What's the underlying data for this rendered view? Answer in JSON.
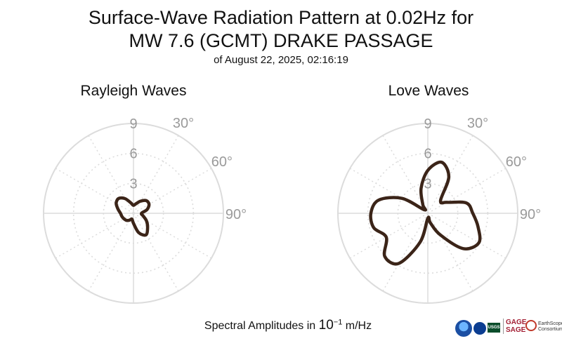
{
  "title": {
    "line1": "Surface-Wave Radiation Pattern at 0.02Hz for",
    "line2": "MW 7.6 (GCMT) DRAKE PASSAGE",
    "line3": "of August 22, 2025, 02:16:19"
  },
  "footer": {
    "prefix": "Spectral Amplitudes in ",
    "base": "10",
    "exponent": "−1",
    "unit": " m/Hz"
  },
  "logos": {
    "gage": "GAGE",
    "sage": "SAGE",
    "earthscope": "EarthScope",
    "consortium": "Consortium",
    "usgs": "USGS"
  },
  "chart_data": [
    {
      "type": "polar",
      "title": "Rayleigh Waves",
      "radial_ticks": [
        "3",
        "6",
        "9"
      ],
      "radial_max": 9,
      "angle_ticks": [
        "30°",
        "60°",
        "90°"
      ],
      "angle_tick_degrees": [
        30,
        60,
        90
      ],
      "angle_direction": "clockwise from top",
      "grid": true,
      "line_color": "#3b2418",
      "series": [
        {
          "azimuth_deg": [
            0,
            15,
            30,
            45,
            60,
            75,
            90,
            105,
            120,
            135,
            150,
            165,
            180,
            195,
            210,
            225,
            240,
            255,
            270,
            285,
            300,
            315,
            330,
            345
          ],
          "amplitude": [
            0.8,
            1.0,
            1.4,
            1.8,
            1.8,
            1.4,
            0.8,
            1.0,
            1.5,
            2.0,
            2.5,
            2.0,
            1.0,
            0.6,
            0.8,
            1.0,
            1.1,
            1.2,
            1.3,
            1.6,
            2.0,
            2.1,
            1.7,
            1.1
          ]
        }
      ]
    },
    {
      "type": "polar",
      "title": "Love Waves",
      "radial_ticks": [
        "3",
        "6",
        "9"
      ],
      "radial_max": 9,
      "angle_ticks": [
        "30°",
        "60°",
        "90°"
      ],
      "angle_tick_degrees": [
        30,
        60,
        90
      ],
      "angle_direction": "clockwise from top",
      "grid": true,
      "line_color": "#3b2418",
      "series": [
        {
          "azimuth_deg": [
            0,
            15,
            30,
            45,
            60,
            75,
            90,
            105,
            120,
            135,
            150,
            165,
            180,
            195,
            210,
            225,
            240,
            255,
            270,
            285,
            300,
            315,
            330,
            345
          ],
          "amplitude": [
            4.3,
            5.3,
            4.2,
            1.8,
            2.2,
            4.0,
            4.5,
            5.2,
            5.9,
            5.0,
            2.5,
            1.0,
            0.5,
            3.0,
            5.8,
            6.1,
            4.8,
            5.6,
            5.7,
            5.1,
            3.0,
            0.5,
            1.0,
            2.6
          ]
        }
      ]
    }
  ]
}
